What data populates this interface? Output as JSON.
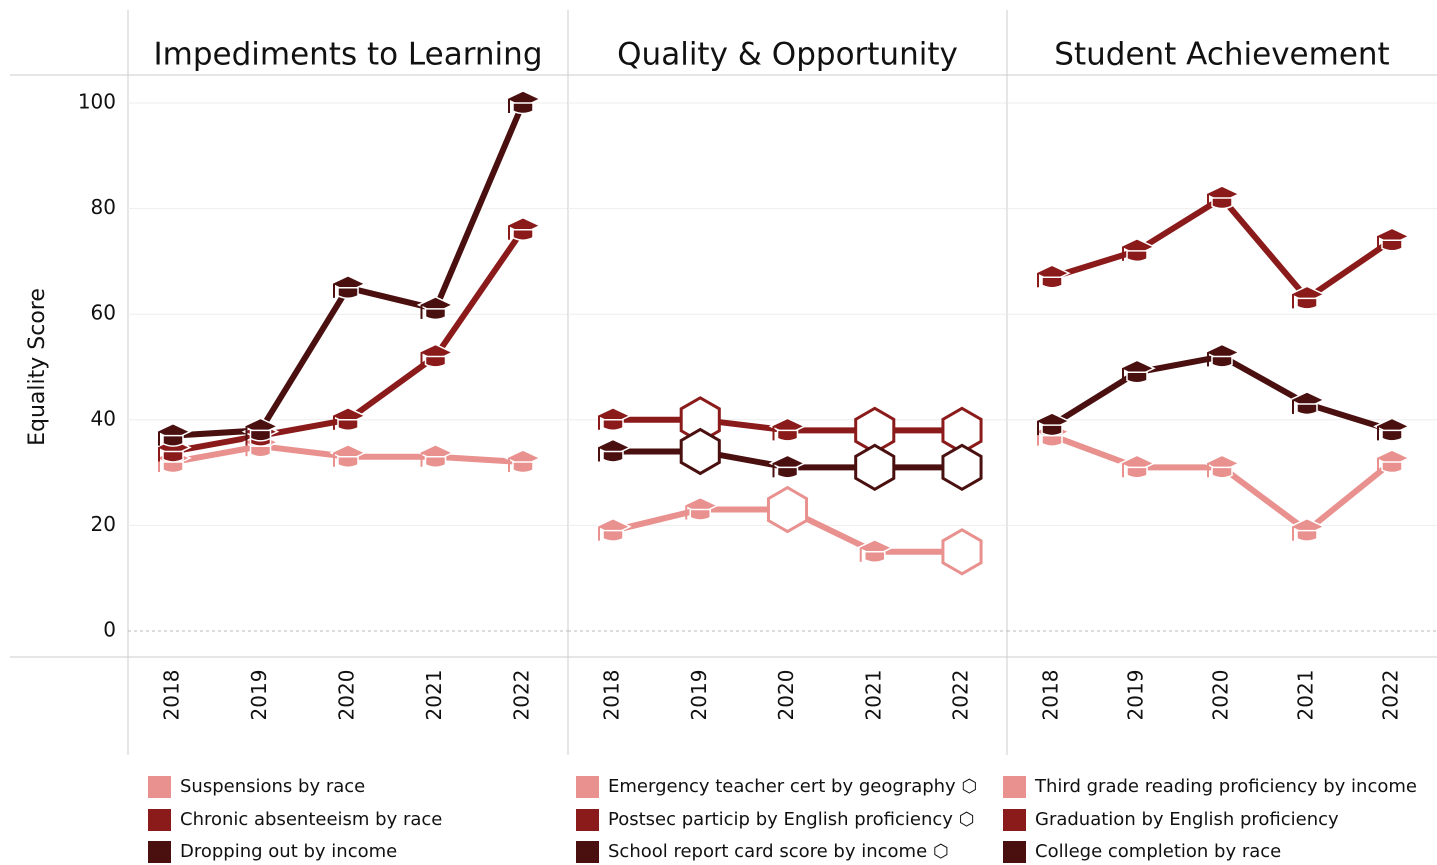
{
  "chart_data": [
    {
      "type": "line",
      "title": "Impediments to Learning",
      "y_label": "Equality Score",
      "categories": [
        "2018",
        "2019",
        "2020",
        "2021",
        "2022"
      ],
      "ylim": [
        0,
        100
      ],
      "yticks": [
        0,
        20,
        40,
        60,
        80,
        100
      ],
      "grid": true,
      "series": [
        {
          "name": "Suspensions by race",
          "color": "#e8918e",
          "values": [
            32,
            35,
            33,
            33,
            32
          ],
          "markers": [
            "cap",
            "cap",
            "cap",
            "cap",
            "cap"
          ]
        },
        {
          "name": "Chronic absenteeism by race",
          "color": "#8b1a1a",
          "values": [
            34,
            37,
            40,
            52,
            76
          ],
          "markers": [
            "cap",
            "cap",
            "cap",
            "cap",
            "cap"
          ]
        },
        {
          "name": "Dropping out by income",
          "color": "#4a1010",
          "values": [
            37,
            38,
            65,
            61,
            100
          ],
          "markers": [
            "cap",
            "cap",
            "cap",
            "cap",
            "cap"
          ]
        }
      ]
    },
    {
      "type": "line",
      "title": "Quality & Opportunity",
      "categories": [
        "2018",
        "2019",
        "2020",
        "2021",
        "2022"
      ],
      "ylim": [
        0,
        100
      ],
      "yticks": [
        0,
        20,
        40,
        60,
        80,
        100
      ],
      "grid": true,
      "series": [
        {
          "name": "Emergency teacher cert by geography ⬡",
          "color": "#e8918e",
          "values": [
            19,
            23,
            23,
            15,
            15
          ],
          "markers": [
            "cap",
            "cap",
            "hex",
            "cap",
            "hex"
          ]
        },
        {
          "name": "Postsec particip by English proficiency ⬡",
          "color": "#8b1a1a",
          "values": [
            40,
            40,
            38,
            38,
            38
          ],
          "markers": [
            "cap",
            "hex",
            "cap",
            "hex",
            "hex"
          ]
        },
        {
          "name": "School report card score by income ⬡",
          "color": "#4a1010",
          "values": [
            34,
            34,
            31,
            31,
            31
          ],
          "markers": [
            "cap",
            "hex",
            "cap",
            "hex",
            "hex"
          ]
        }
      ]
    },
    {
      "type": "line",
      "title": "Student Achievement",
      "categories": [
        "2018",
        "2019",
        "2020",
        "2021",
        "2022"
      ],
      "ylim": [
        0,
        100
      ],
      "yticks": [
        0,
        20,
        40,
        60,
        80,
        100
      ],
      "grid": true,
      "series": [
        {
          "name": "Third grade reading proficiency by income",
          "color": "#e8918e",
          "values": [
            37,
            31,
            31,
            19,
            32
          ],
          "markers": [
            "cap",
            "cap",
            "cap",
            "cap",
            "cap"
          ]
        },
        {
          "name": "Graduation by English proficiency",
          "color": "#8b1a1a",
          "values": [
            67,
            72,
            82,
            63,
            74
          ],
          "markers": [
            "cap",
            "cap",
            "cap",
            "cap",
            "cap"
          ]
        },
        {
          "name": "College completion by race",
          "color": "#4a1010",
          "values": [
            39,
            49,
            52,
            43,
            38
          ],
          "markers": [
            "cap",
            "cap",
            "cap",
            "cap",
            "cap"
          ]
        }
      ]
    }
  ]
}
